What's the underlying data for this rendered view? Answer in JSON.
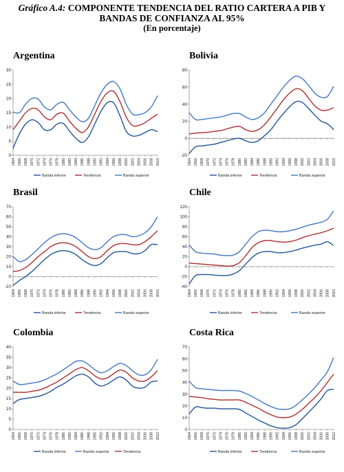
{
  "header": {
    "label": "Gráfico A.4:",
    "title_rest": "COMPONENTE TENDENCIA DEL RATIO CARTERA A PIB Y",
    "title_line2": "BANDAS DE CONFIANZA AL 95%",
    "subtitle": "(En porcentaje)"
  },
  "colors": {
    "inferior": "#2d5d9e",
    "tendencia": "#b03a37",
    "superior": "#4a7ec5",
    "axis": "#666666"
  },
  "chart_data": [
    {
      "type": "line",
      "title": "Argentina",
      "x": [
        1964,
        1966,
        1968,
        1970,
        1972,
        1974,
        1976,
        1978,
        1980,
        1982,
        1984,
        1986,
        1988,
        1990,
        1992,
        1994,
        1996,
        1998,
        2000,
        2002,
        2004,
        2006,
        2008,
        2010
      ],
      "x_ticks": [
        "1964",
        "1966",
        "1968",
        "1970",
        "1972",
        "1974",
        "1976",
        "1978",
        "1980",
        "1982",
        "1984",
        "1986",
        "1988",
        "1990",
        "1992",
        "1994",
        "1996",
        "1998",
        "2000",
        "2002",
        "2004",
        "2006",
        "2008",
        "2010"
      ],
      "ylim": [
        0,
        30
      ],
      "y_ticks": [
        "0",
        "5",
        "10",
        "15",
        "20",
        "25",
        "30"
      ],
      "legend": [
        "Banda inferior",
        "Tendencia",
        "Banda superior"
      ],
      "series": [
        {
          "name": "Banda inferior",
          "color": "#2d5d9e",
          "values": [
            2.5,
            7.5,
            11,
            12.5,
            11.5,
            9,
            9,
            11,
            11.2,
            8.5,
            6,
            4.5,
            6.5,
            11,
            15.5,
            18.5,
            18.5,
            14,
            8.5,
            6.8,
            7,
            8,
            9,
            8.3
          ]
        },
        {
          "name": "Tendencia",
          "color": "#b03a37",
          "values": [
            9,
            12,
            15,
            16.5,
            16,
            13.5,
            12.5,
            14.5,
            14.8,
            12,
            9.5,
            8,
            10,
            14.5,
            19,
            22,
            22.5,
            19,
            13.5,
            10.5,
            10.5,
            11.5,
            13,
            14.5
          ]
        },
        {
          "name": "Banda superior",
          "color": "#4a7ec5",
          "values": [
            15.2,
            15,
            18,
            20,
            19.8,
            17,
            16,
            18,
            18.6,
            16,
            13.5,
            11.8,
            13,
            17.5,
            22,
            25,
            26,
            23.5,
            18,
            14.5,
            14.3,
            15,
            17,
            21
          ]
        }
      ]
    },
    {
      "type": "line",
      "title": "Bolivia",
      "x": [
        1964,
        1966,
        1968,
        1970,
        1972,
        1974,
        1976,
        1978,
        1980,
        1982,
        1984,
        1986,
        1988,
        1990,
        1992,
        1994,
        1996,
        1998,
        2000,
        2002,
        2004,
        2006,
        2008,
        2010
      ],
      "x_ticks": [
        "1964",
        "1966",
        "1968",
        "1970",
        "1972",
        "1974",
        "1976",
        "1978",
        "1980",
        "1982",
        "1984",
        "1986",
        "1988",
        "1990",
        "1992",
        "1994",
        "1996",
        "1998",
        "2000",
        "2002",
        "2004",
        "2006",
        "2008",
        "2010"
      ],
      "ylim": [
        -20,
        80
      ],
      "y_ticks": [
        "-20",
        "0",
        "20",
        "40",
        "60",
        "80"
      ],
      "legend": [
        "Banda inferior",
        "Tendencia",
        "Banda superior"
      ],
      "series": [
        {
          "name": "Banda inferior",
          "color": "#2d5d9e",
          "values": [
            -18,
            -10,
            -9,
            -8,
            -7,
            -5,
            -3,
            -1,
            0,
            -3,
            -5,
            -3,
            3,
            10,
            20,
            29,
            37,
            43,
            42,
            35,
            27,
            20,
            17,
            10
          ]
        },
        {
          "name": "Tendencia",
          "color": "#b03a37",
          "values": [
            5,
            6,
            6.5,
            7,
            8,
            9,
            11,
            13,
            14,
            10,
            8,
            10,
            16,
            25,
            35,
            45,
            53,
            58,
            56,
            47,
            38,
            33,
            33,
            36
          ]
        },
        {
          "name": "Banda superior",
          "color": "#4a7ec5",
          "values": [
            30,
            22,
            22,
            23,
            24,
            25,
            27,
            29,
            29,
            25,
            22,
            24,
            30,
            40,
            50,
            60,
            68,
            73,
            70,
            62,
            53,
            48,
            49,
            61
          ]
        }
      ]
    },
    {
      "type": "line",
      "title": "Brasil",
      "x": [
        1964,
        1966,
        1968,
        1970,
        1972,
        1974,
        1976,
        1978,
        1980,
        1982,
        1984,
        1986,
        1988,
        1990,
        1992,
        1994,
        1996,
        1998,
        2000,
        2002,
        2004,
        2006,
        2008,
        2010
      ],
      "x_ticks": [
        "1964",
        "1966",
        "1968",
        "1970",
        "1972",
        "1974",
        "1976",
        "1978",
        "1980",
        "1982",
        "1984",
        "1986",
        "1988",
        "1990",
        "1992",
        "1994",
        "1996",
        "1998",
        "2000",
        "2002",
        "2004",
        "2006",
        "2008",
        "2010"
      ],
      "ylim": [
        -10,
        70
      ],
      "y_ticks": [
        "-10",
        "0",
        "10",
        "20",
        "30",
        "40",
        "50",
        "60",
        "70"
      ],
      "legend": [
        "Banda inferior",
        "Tendencia",
        "Banda superior"
      ],
      "series": [
        {
          "name": "Banda inferior",
          "color": "#2d5d9e",
          "values": [
            -9,
            -4,
            0,
            5,
            11,
            17,
            22,
            25,
            26,
            25,
            22,
            17,
            13,
            11,
            13,
            19,
            24,
            25,
            25,
            23,
            23,
            26,
            32,
            32
          ]
        },
        {
          "name": "Tendencia",
          "color": "#b03a37",
          "values": [
            5,
            6,
            9,
            14,
            20,
            25,
            30,
            33,
            34,
            33,
            30,
            25,
            20,
            18,
            20,
            26,
            31,
            33,
            33,
            32,
            32,
            35,
            40,
            46
          ]
        },
        {
          "name": "Banda superior",
          "color": "#4a7ec5",
          "values": [
            20,
            15,
            17,
            22,
            28,
            34,
            39,
            42,
            43,
            42,
            39,
            34,
            29,
            27,
            29,
            35,
            40,
            42,
            42,
            40,
            41,
            44,
            50,
            60
          ]
        }
      ]
    },
    {
      "type": "line",
      "title": "Chile",
      "x": [
        1964,
        1966,
        1968,
        1970,
        1972,
        1974,
        1976,
        1978,
        1980,
        1982,
        1984,
        1986,
        1988,
        1990,
        1992,
        1994,
        1996,
        1998,
        2000,
        2002,
        2004,
        2006,
        2008,
        2010
      ],
      "x_ticks": [
        "1964",
        "1966",
        "1968",
        "1970",
        "1972",
        "1974",
        "1976",
        "1978",
        "1980",
        "1982",
        "1984",
        "1986",
        "1988",
        "1990",
        "1992",
        "1994",
        "1996",
        "1998",
        "2000",
        "2002",
        "2004",
        "2006",
        "2008",
        "2010"
      ],
      "ylim": [
        -40,
        120
      ],
      "y_ticks": [
        "-40",
        "-20",
        "0",
        "20",
        "40",
        "60",
        "80",
        "100",
        "120"
      ],
      "legend": [
        "Banda inferior",
        "Tendencia",
        "Banda superior"
      ],
      "series": [
        {
          "name": "Banda inferior",
          "color": "#2d5d9e",
          "values": [
            -35,
            -18,
            -16,
            -16,
            -17,
            -18,
            -18,
            -15,
            -8,
            5,
            18,
            27,
            30,
            30,
            28,
            28,
            30,
            33,
            37,
            40,
            43,
            45,
            50,
            42
          ]
        },
        {
          "name": "Tendencia",
          "color": "#b03a37",
          "values": [
            7,
            6,
            5,
            4,
            3,
            2,
            1,
            2,
            8,
            22,
            38,
            48,
            52,
            52,
            50,
            49,
            50,
            53,
            58,
            62,
            65,
            68,
            72,
            77
          ]
        },
        {
          "name": "Banda superior",
          "color": "#4a7ec5",
          "values": [
            43,
            30,
            27,
            26,
            25,
            23,
            22,
            23,
            30,
            45,
            60,
            70,
            73,
            72,
            70,
            70,
            72,
            75,
            79,
            83,
            86,
            89,
            95,
            112
          ]
        }
      ]
    },
    {
      "type": "line",
      "title": "Colombia",
      "x": [
        1964,
        1966,
        1968,
        1970,
        1972,
        1974,
        1976,
        1978,
        1980,
        1982,
        1984,
        1986,
        1988,
        1990,
        1992,
        1994,
        1996,
        1998,
        2000,
        2002,
        2004,
        2006,
        2008,
        2010
      ],
      "x_ticks": [
        "1964",
        "1966",
        "1968",
        "1970",
        "1972",
        "1974",
        "1976",
        "1978",
        "1980",
        "1982",
        "1984",
        "1986",
        "1988",
        "1990",
        "1992",
        "1994",
        "1996",
        "1998",
        "2000",
        "2002",
        "2004",
        "2006",
        "2008",
        "2010"
      ],
      "ylim": [
        0,
        40
      ],
      "y_ticks": [
        "0",
        "5",
        "10",
        "15",
        "20",
        "25",
        "30",
        "35",
        "40"
      ],
      "legend": [
        "Banda inferior",
        "Banda superior",
        "Tendencia"
      ],
      "series": [
        {
          "name": "Banda inferior",
          "color": "#2d5d9e",
          "values": [
            12.5,
            14.5,
            15,
            15.5,
            16,
            17,
            18.5,
            20.5,
            22,
            24,
            26,
            26.8,
            25.5,
            22.5,
            21,
            22,
            24,
            25.5,
            24,
            21,
            20,
            20.5,
            23,
            23.5
          ]
        },
        {
          "name": "Banda superior",
          "color": "#4a7ec5",
          "values": [
            23.5,
            21.8,
            22,
            22.5,
            23,
            24,
            25.5,
            27,
            29,
            31,
            33,
            33.2,
            31.5,
            29,
            27.5,
            28.5,
            30.5,
            32,
            31,
            28.5,
            26.5,
            26.5,
            29,
            34
          ]
        },
        {
          "name": "Tendencia",
          "color": "#b03a37",
          "values": [
            18,
            18,
            18,
            18.5,
            19,
            20,
            21.5,
            23,
            25,
            27,
            29,
            30,
            28.5,
            26,
            24.5,
            25,
            27,
            28.8,
            27.8,
            25,
            23.5,
            23.5,
            25.5,
            28.5
          ]
        }
      ]
    },
    {
      "type": "line",
      "title": "Costa Rica",
      "x": [
        1964,
        1966,
        1968,
        1970,
        1972,
        1974,
        1976,
        1978,
        1980,
        1982,
        1984,
        1986,
        1988,
        1990,
        1992,
        1994,
        1996,
        1998,
        2000,
        2002,
        2004,
        2006,
        2008,
        2010
      ],
      "x_ticks": [
        "1964",
        "1966",
        "1968",
        "1970",
        "1972",
        "1974",
        "1976",
        "1978",
        "1980",
        "1982",
        "1984",
        "1986",
        "1988",
        "1990",
        "1992",
        "1994",
        "1996",
        "1998",
        "2000",
        "2002",
        "2004",
        "2006",
        "2008",
        "2010"
      ],
      "ylim": [
        0,
        70
      ],
      "y_ticks": [
        "0",
        "10",
        "20",
        "30",
        "40",
        "50",
        "60",
        "70"
      ],
      "legend": [
        "Banda inferior",
        "Tendencia",
        "Banda superior"
      ],
      "series": [
        {
          "name": "Banda inferior",
          "color": "#2d5d9e",
          "values": [
            13,
            19,
            18.5,
            18,
            18,
            17.5,
            17.5,
            17.5,
            17,
            14,
            11,
            8,
            5.5,
            3,
            1.5,
            1,
            1.5,
            4,
            9,
            14.5,
            20,
            26,
            33,
            34
          ]
        },
        {
          "name": "Tendencia",
          "color": "#b03a37",
          "values": [
            28,
            27.5,
            27,
            26,
            25.5,
            25,
            25,
            25,
            25,
            23,
            20.5,
            18,
            15,
            12.5,
            10.5,
            10,
            10.5,
            13,
            17,
            22,
            27,
            33,
            40,
            47
          ]
        },
        {
          "name": "Banda superior",
          "color": "#4a7ec5",
          "values": [
            41,
            35.5,
            34.5,
            34,
            33.5,
            33,
            33,
            33,
            32.5,
            30.5,
            28,
            25,
            22,
            19.5,
            17.5,
            17,
            17.5,
            20.5,
            25,
            30,
            35.5,
            42,
            49,
            61
          ]
        }
      ]
    }
  ]
}
